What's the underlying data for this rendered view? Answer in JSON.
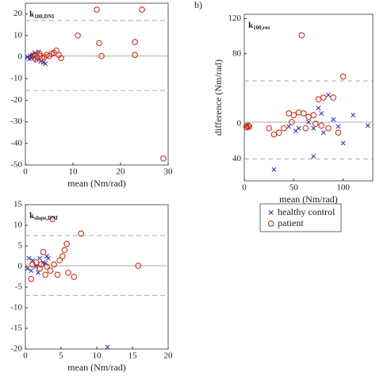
{
  "chart_data": [
    {
      "type": "scatter",
      "title": "k",
      "title_subscript": "100,DNI",
      "xlabel": "mean (Nm/rad)",
      "xlim": [
        0,
        30
      ],
      "xticks": [
        0,
        10,
        20,
        30
      ],
      "ylim": [
        -50,
        25
      ],
      "yticks": [
        20,
        10,
        0,
        -10,
        -20,
        -30,
        -40,
        -50
      ],
      "limits_of_agreement": [
        17,
        -15.5
      ],
      "mean_difference": 0.5,
      "series": [
        {
          "name": "healthy control",
          "marker": "x",
          "color": "#2a2aa8",
          "x": [
            0.5,
            1,
            1.2,
            1.5,
            2,
            2.3,
            2.8,
            3.2,
            3.8,
            4.2,
            0.8,
            1.8
          ],
          "values": [
            0,
            0.5,
            -0.5,
            1,
            2,
            -1,
            2.5,
            -2,
            -2.5,
            -3,
            -0.8,
            0
          ]
        },
        {
          "name": "patient",
          "marker": "o",
          "color": "#c8321e",
          "x": [
            15,
            24.5,
            11,
            15.5,
            23,
            16,
            23,
            29,
            2,
            2.5,
            3,
            3.5,
            4,
            4.5,
            5,
            5.5,
            6,
            6.5,
            7,
            7.5,
            2.2,
            3,
            1.5
          ],
          "values": [
            22,
            22,
            10,
            6.5,
            7,
            0.5,
            1,
            -47,
            1,
            0,
            0.5,
            -0.5,
            0,
            1,
            0.5,
            1.5,
            2,
            3,
            1,
            -0.5,
            -1,
            1.5,
            0.5
          ]
        }
      ]
    },
    {
      "type": "scatter",
      "title": "k",
      "title_subscript": "100,res",
      "annotation": "b)",
      "xlabel": "mean (Nm/rad)",
      "ylabel": "difference (Nm/rad)",
      "xlim": [
        0,
        130
      ],
      "xticks": [
        0,
        50,
        100
      ],
      "ylim": [
        -65,
        125
      ],
      "yticks": [
        120,
        80,
        0,
        {
          "value": -40,
          "label": "40"
        }
      ],
      "limits_of_agreement": [
        49,
        -40
      ],
      "mean_difference": 2,
      "series": [
        {
          "name": "healthy control",
          "marker": "x",
          "color": "#2a2aa8",
          "x": [
            85,
            75,
            125,
            100,
            70,
            30,
            78,
            90,
            55,
            52,
            65,
            80,
            110,
            3,
            95,
            45,
            70
          ],
          "values": [
            33,
            18,
            -2,
            -22,
            -37,
            -52,
            12,
            5,
            -5,
            -8,
            2,
            -10,
            10,
            -2,
            -3,
            -3,
            -5
          ]
        },
        {
          "name": "patient",
          "marker": "o",
          "color": "#c8321e",
          "x": [
            58,
            100,
            80,
            75,
            90,
            45,
            50,
            55,
            60,
            65,
            70,
            72,
            78,
            85,
            40,
            30,
            35,
            25,
            2,
            3,
            4,
            5,
            95,
            62,
            48
          ],
          "values": [
            101,
            54,
            30,
            28,
            30,
            12,
            10,
            13,
            12,
            8,
            10,
            0,
            -2,
            -5,
            -5,
            -12,
            -10,
            -5,
            -3,
            -4,
            -2,
            -3,
            -10,
            -5,
            2
          ]
        }
      ]
    },
    {
      "type": "scatter",
      "title": "k",
      "title_subscript": "slope,DNI",
      "xlabel": "mean (Nm/rad)",
      "xlim": [
        0,
        20
      ],
      "xticks": [
        0,
        5,
        10,
        15,
        20
      ],
      "ylim": [
        -20,
        15
      ],
      "yticks": [
        15,
        10,
        5,
        0,
        -5,
        -10,
        -15,
        -20
      ],
      "limits_of_agreement": [
        7.5,
        -7
      ],
      "mean_difference": 0.2,
      "series": [
        {
          "name": "healthy control",
          "marker": "x",
          "color": "#2a2aa8",
          "x": [
            0.5,
            1,
            1.5,
            2,
            0.8,
            2.5,
            3,
            3.2,
            0.3,
            11.5,
            1.8,
            2.8
          ],
          "values": [
            2,
            1.5,
            0,
            2,
            -1,
            1,
            2.5,
            2,
            -0.5,
            -19.5,
            -1.5,
            0.8
          ]
        },
        {
          "name": "patient",
          "marker": "o",
          "color": "#c8321e",
          "x": [
            3.8,
            7.8,
            5.8,
            5.5,
            2.5,
            5.2,
            4.8,
            4,
            3,
            2,
            1.5,
            0.8,
            2.8,
            3.5,
            4.5,
            6,
            6.8,
            1,
            2.2,
            15.8
          ],
          "values": [
            11.5,
            8,
            5.5,
            4,
            3.5,
            2.5,
            1.5,
            0.5,
            0,
            -0.5,
            1,
            -3,
            -2,
            -1,
            -2,
            -1.5,
            -2.5,
            0.5,
            0.5,
            0.2
          ]
        }
      ]
    }
  ]
}
